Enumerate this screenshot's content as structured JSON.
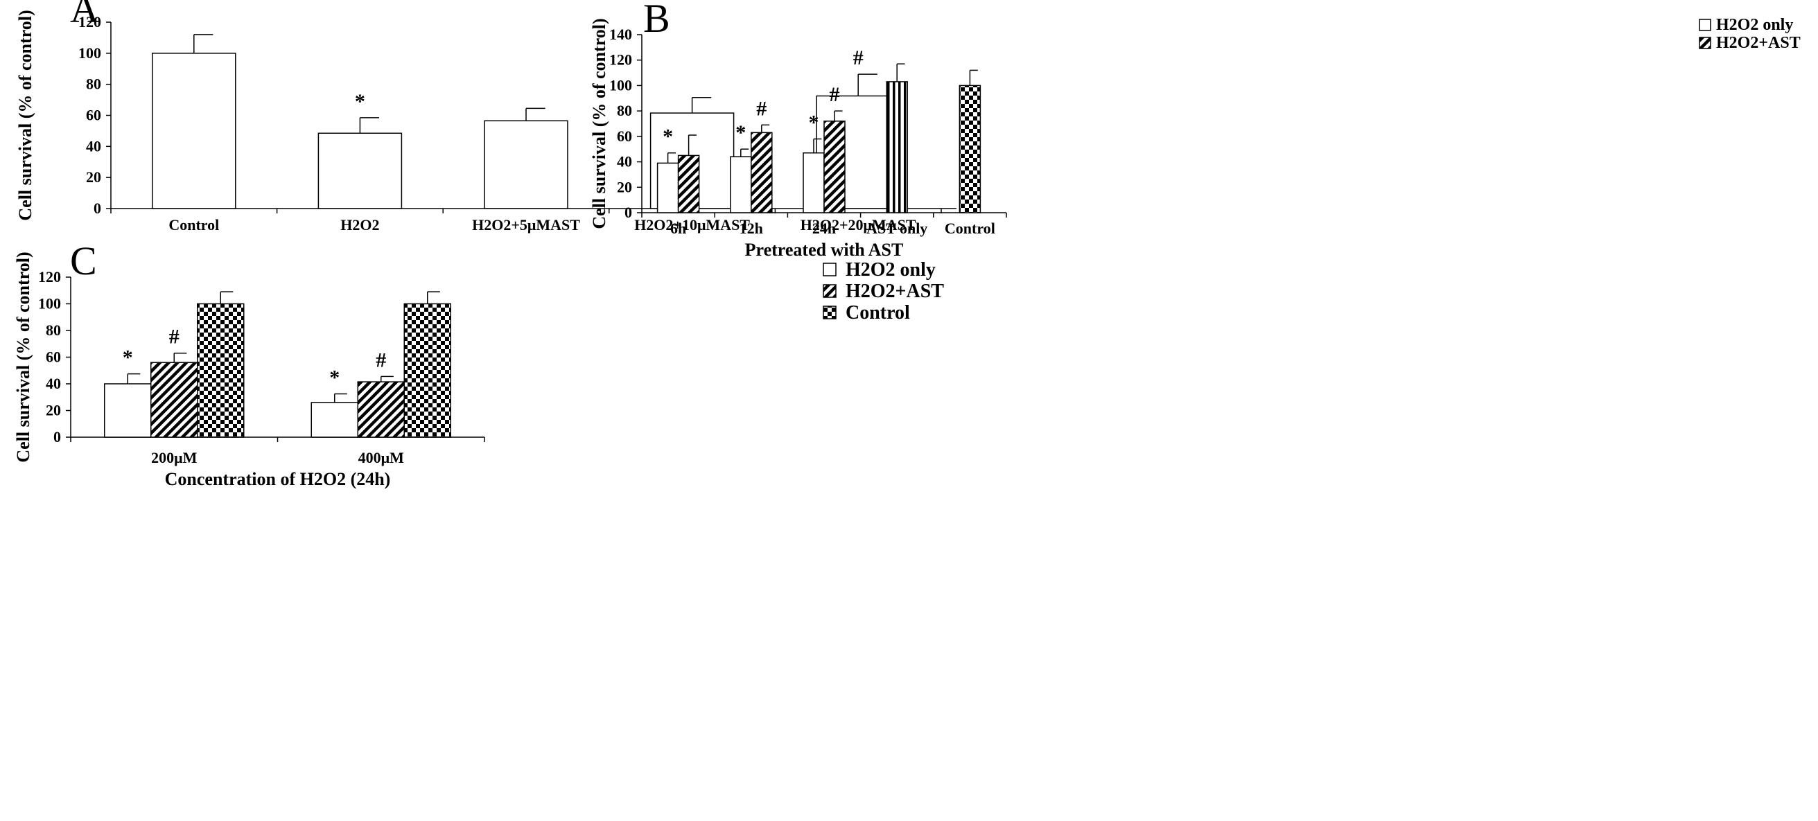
{
  "chart_data": [
    {
      "panel_label": "A",
      "type": "bar",
      "ylabel": "Cell survival (% of control)",
      "xlabel": "",
      "ylim": [
        0,
        120
      ],
      "yticks": [
        "0",
        "20",
        "40",
        "60",
        "80",
        "100",
        "120"
      ],
      "categories": [
        "Control",
        "H2O2",
        "H2O2+5μMAST",
        "H2O2+10μMAST",
        "H2O2+20μMAST"
      ],
      "series": [
        {
          "pattern": "white",
          "values": [
            100,
            48.5,
            56.5,
            61.5,
            72.5
          ],
          "errors": [
            12,
            10,
            8,
            10,
            14
          ],
          "marks": [
            "",
            "*",
            "",
            "",
            "#"
          ]
        }
      ]
    },
    {
      "panel_label": "B",
      "type": "bar",
      "ylabel": "Cell survival (% of control)",
      "xlabel": "Pretreated with AST",
      "ylim": [
        0,
        140
      ],
      "yticks": [
        "0",
        "20",
        "40",
        "60",
        "80",
        "100",
        "120",
        "140"
      ],
      "categories": [
        "6h",
        "12h",
        "24h",
        "AST only",
        "Control"
      ],
      "legend": [
        {
          "label": "H2O2 only",
          "pattern": "white"
        },
        {
          "label": "H2O2+AST",
          "pattern": "hatch"
        }
      ],
      "bars": [
        {
          "group": 0,
          "pattern": "white",
          "value": 39,
          "error": 8,
          "mark": "*"
        },
        {
          "group": 0,
          "pattern": "hatch",
          "value": 45,
          "error": 16,
          "mark": ""
        },
        {
          "group": 1,
          "pattern": "white",
          "value": 44,
          "error": 6,
          "mark": "*"
        },
        {
          "group": 1,
          "pattern": "hatch",
          "value": 63,
          "error": 6,
          "mark": "#"
        },
        {
          "group": 2,
          "pattern": "white",
          "value": 47,
          "error": 11,
          "mark": "*"
        },
        {
          "group": 2,
          "pattern": "hatch",
          "value": 72,
          "error": 8,
          "mark": "#"
        },
        {
          "group": 3,
          "pattern": "vstripe",
          "value": 103,
          "error": 14,
          "mark": ""
        },
        {
          "group": 4,
          "pattern": "check",
          "value": 100,
          "error": 12,
          "mark": ""
        }
      ]
    },
    {
      "panel_label": "C",
      "type": "bar",
      "ylabel": "Cell survival (% of control)",
      "xlabel": "Concentration of H2O2 (24h)",
      "ylim": [
        0,
        120
      ],
      "yticks": [
        "0",
        "20",
        "40",
        "60",
        "80",
        "100",
        "120"
      ],
      "categories": [
        "200μM",
        "400μM"
      ],
      "series": [
        {
          "name": "H2O2 only",
          "pattern": "white",
          "values": [
            40,
            26
          ],
          "errors": [
            7.5,
            6.5
          ],
          "marks": [
            "*",
            "*"
          ]
        },
        {
          "name": "H2O2+AST",
          "pattern": "hatch",
          "values": [
            56,
            41.5
          ],
          "errors": [
            7,
            4
          ],
          "marks": [
            "#",
            "#"
          ]
        },
        {
          "name": "Control",
          "pattern": "check",
          "values": [
            100,
            100
          ],
          "errors": [
            9,
            9
          ],
          "marks": [
            "",
            ""
          ]
        }
      ]
    }
  ]
}
